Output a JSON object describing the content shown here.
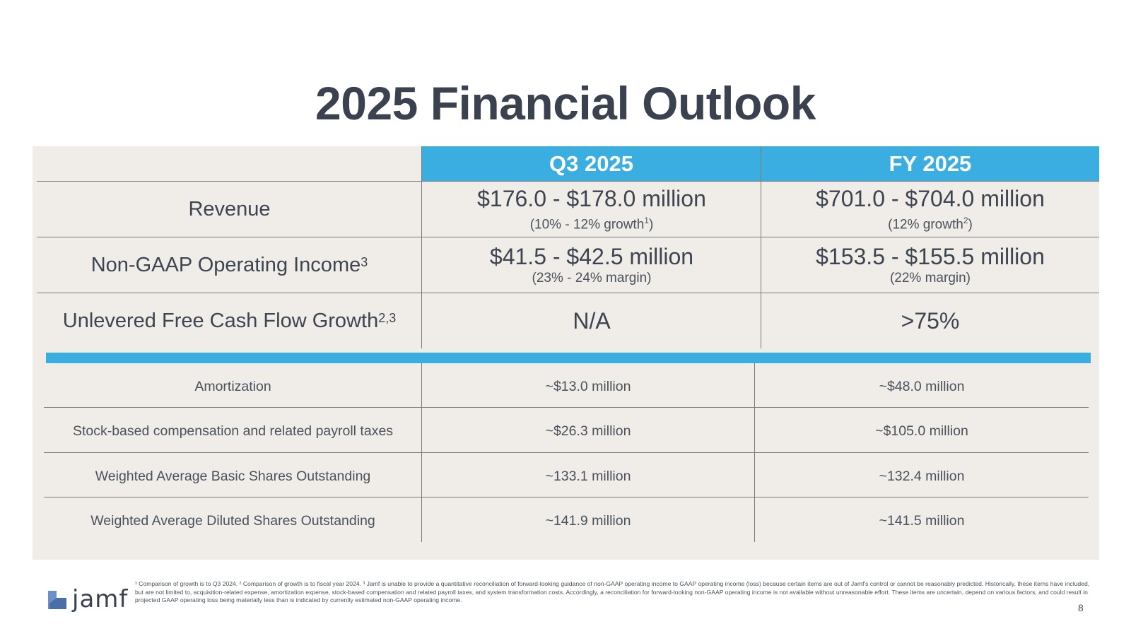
{
  "title": "2025 Financial Outlook",
  "header": {
    "col1": "Q3 2025",
    "col2": "FY 2025"
  },
  "main_rows": [
    {
      "label": "Revenue",
      "label_sup": "",
      "q3_main": "$176.0 - $178.0 million",
      "q3_note": "(10% - 12% growth",
      "q3_note_sup": "1",
      "q3_note_end": ")",
      "fy_main": "$701.0 - $704.0 million",
      "fy_note": "(12% growth",
      "fy_note_sup": "2",
      "fy_note_end": ")"
    },
    {
      "label": "Non-GAAP Operating Income",
      "label_sup": "3",
      "q3_main": "$41.5 - $42.5 million",
      "q3_note": "(23% - 24% margin)",
      "fy_main": "$153.5 - $155.5 million",
      "fy_note": "(22% margin)"
    },
    {
      "label": "Unlevered Free Cash Flow Growth",
      "label_sup": "2,3",
      "q3_value": "N/A",
      "fy_value": ">75%"
    }
  ],
  "sub_rows": [
    {
      "label": "Amortization",
      "q3": "~$13.0 million",
      "fy": "~$48.0 million"
    },
    {
      "label": "Stock-based compensation and related payroll taxes",
      "q3": "~$26.3 million",
      "fy": "~$105.0 million"
    },
    {
      "label": "Weighted Average Basic Shares Outstanding",
      "q3": "~133.1 million",
      "fy": "~132.4 million"
    },
    {
      "label": "Weighted Average Diluted Shares Outstanding",
      "q3": "~141.9 million",
      "fy": "~141.5 million"
    }
  ],
  "footnote": "¹ Comparison of growth is to Q3 2024. ² Comparison of growth is to fiscal year 2024. ³ Jamf is unable to provide a quantitative reconciliation of forward-looking guidance of non-GAAP operating income to GAAP operating income (loss) because certain items are out of Jamf's control or cannot be reasonably predicted. Historically, these items have included, but are not limited to, acquisition-related expense, amortization expense, stock-based compensation and related payroll taxes, and system transformation costs. Accordingly, a reconciliation for forward-looking non-GAAP operating income is not available without unreasonable effort. These items are uncertain, depend on various factors, and could result in projected GAAP operating loss being materially less than is indicated by currently estimated non-GAAP operating income.",
  "logo_text": "jamf",
  "page_number": "8",
  "colors": {
    "accent": "#3aaee0",
    "panel": "#f0ece8",
    "text": "#3d4550"
  }
}
